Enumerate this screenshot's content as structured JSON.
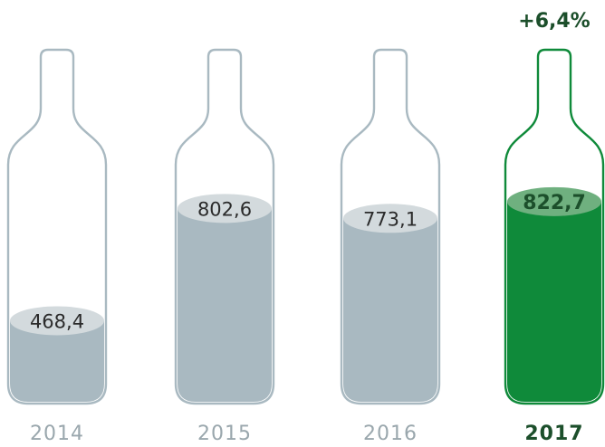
{
  "chart_data": {
    "type": "bar",
    "categories": [
      "2014",
      "2015",
      "2016",
      "2017"
    ],
    "values": [
      468.4,
      802.6,
      773.1,
      822.7
    ],
    "value_labels": [
      "468,4",
      "802,6",
      "773,1",
      "822,7"
    ],
    "highlight_index": 3,
    "annotation": "+6,4%",
    "title": "",
    "xlabel": "",
    "ylabel": "",
    "colors": {
      "fill": "#a9b9c1",
      "outline": "#a9b9c1",
      "cap": "#d3dadd",
      "value_text": "#2b2b2b",
      "year_text": "#9aa7ad",
      "highlight_fill": "#0f8a3a",
      "highlight_outline": "#0f8a3a",
      "highlight_cap": "#6fb07f",
      "highlight_text": "#1c4f2b"
    }
  }
}
